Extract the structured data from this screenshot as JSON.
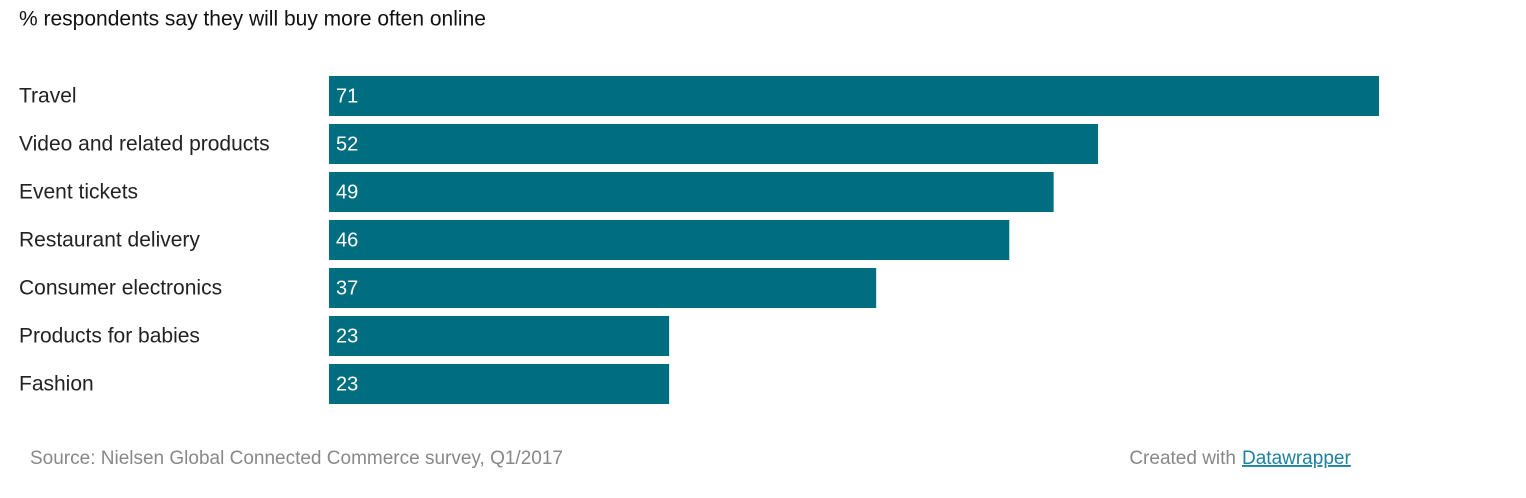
{
  "chart_data": {
    "type": "bar",
    "orientation": "horizontal",
    "title": "% respondents say they will buy more often online",
    "categories": [
      "Travel",
      "Video and related products",
      "Event tickets",
      "Restaurant delivery",
      "Consumer electronics",
      "Products for babies",
      "Fashion"
    ],
    "values": [
      71,
      52,
      49,
      46,
      37,
      23,
      23
    ],
    "color": "#006e80",
    "source": "Source: Nielsen Global Connected Commerce survey, Q1/2017",
    "credit": "Created with",
    "credit_link": "Datawrapper"
  }
}
